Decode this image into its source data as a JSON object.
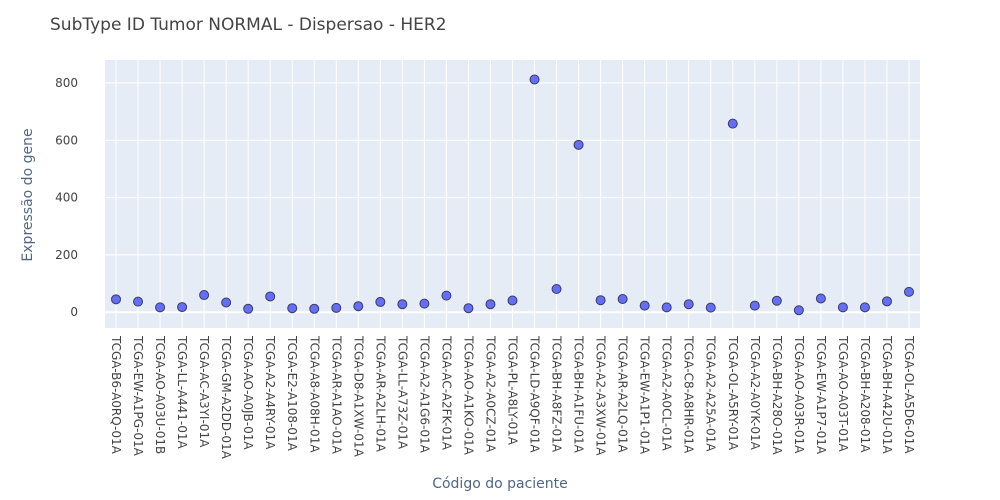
{
  "chart_data": {
    "type": "scatter",
    "title": "SubType ID Tumor NORMAL - Dispersao - HER2",
    "xlabel": "Código do paciente",
    "ylabel": "Expressão do gene",
    "ylim": [
      -55,
      880
    ],
    "yticks": [
      0,
      200,
      400,
      600,
      800
    ],
    "grid": true,
    "legend": "none",
    "colors": {
      "marker": "#636efa",
      "marker_edge": "#3b3b5a",
      "plot_bg": "#e5ecf6",
      "grid": "#ffffff"
    },
    "categories": [
      "TCGA-B6-A0RQ-01A",
      "TCGA-EW-A1PG-01A",
      "TCGA-AO-A03U-01B",
      "TCGA-LL-A441-01A",
      "TCGA-AC-A3YI-01A",
      "TCGA-GM-A2DD-01A",
      "TCGA-AO-A0JB-01A",
      "TCGA-A2-A4RY-01A",
      "TCGA-E2-A108-01A",
      "TCGA-A8-A08H-01A",
      "TCGA-AR-A1AO-01A",
      "TCGA-D8-A1XW-01A",
      "TCGA-AR-A2LH-01A",
      "TCGA-LL-A73Z-01A",
      "TCGA-A2-A1G6-01A",
      "TCGA-AC-A2FK-01A",
      "TCGA-AO-A1KO-01A",
      "TCGA-A2-A0CZ-01A",
      "TCGA-PL-A8LY-01A",
      "TCGA-LD-A9QF-01A",
      "TCGA-BH-A8FZ-01A",
      "TCGA-BH-A1FU-01A",
      "TCGA-A2-A3XW-01A",
      "TCGA-AR-A2LQ-01A",
      "TCGA-EW-A1P1-01A",
      "TCGA-A2-A0CL-01A",
      "TCGA-C8-A8HR-01A",
      "TCGA-A2-A25A-01A",
      "TCGA-OL-A5RY-01A",
      "TCGA-A2-A0YK-01A",
      "TCGA-BH-A28O-01A",
      "TCGA-AO-A03R-01A",
      "TCGA-EW-A1P7-01A",
      "TCGA-AO-A03T-01A",
      "TCGA-BH-A208-01A",
      "TCGA-BH-A42U-01A",
      "TCGA-OL-A5D6-01A"
    ],
    "values": [
      45,
      37,
      17,
      18,
      60,
      34,
      12,
      55,
      14,
      12,
      15,
      21,
      36,
      28,
      30,
      58,
      14,
      28,
      41,
      812,
      81,
      584,
      42,
      46,
      23,
      17,
      28,
      16,
      658,
      23,
      40,
      7,
      48,
      17,
      17,
      38,
      71
    ]
  }
}
